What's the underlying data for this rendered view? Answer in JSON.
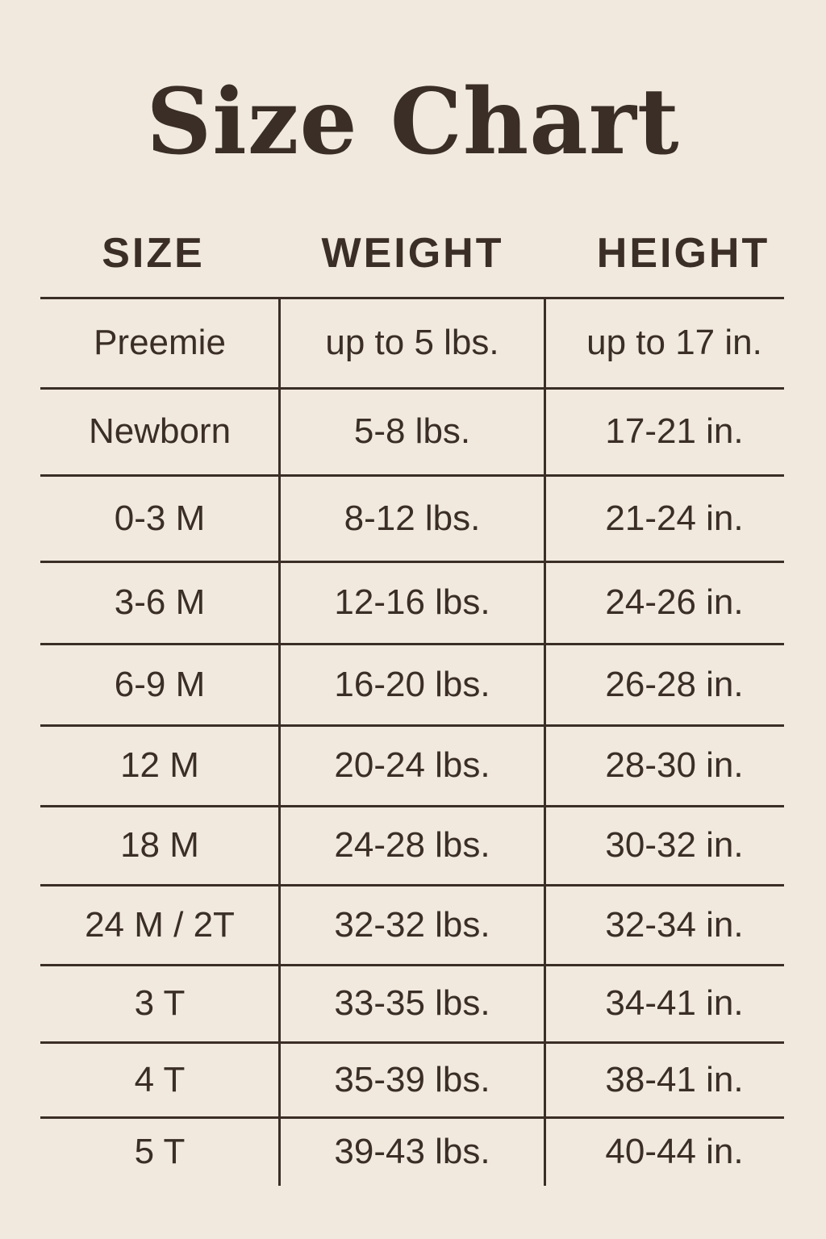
{
  "title": "Size Chart",
  "headers": [
    "SIZE",
    "WEIGHT",
    "HEIGHT"
  ],
  "rows": [
    [
      "Preemie",
      "up to 5 lbs.",
      "up to 17 in."
    ],
    [
      "Newborn",
      "5-8 lbs.",
      "17-21 in."
    ],
    [
      "0-3 M",
      "8-12 lbs.",
      "21-24 in."
    ],
    [
      "3-6 M",
      "12-16 lbs.",
      "24-26 in."
    ],
    [
      "6-9 M",
      "16-20 lbs.",
      "26-28 in."
    ],
    [
      "12 M",
      "20-24 lbs.",
      "28-30 in."
    ],
    [
      "18 M",
      "24-28 lbs.",
      "30-32 in."
    ],
    [
      "24 M / 2T",
      "32-32 lbs.",
      "32-34 in."
    ],
    [
      "3 T",
      "33-35 lbs.",
      "34-41 in."
    ],
    [
      "4 T",
      "35-39 lbs.",
      "38-41 in."
    ],
    [
      "5 T",
      "39-43 lbs.",
      "40-44 in."
    ]
  ],
  "colors": {
    "background": "#f1e9de",
    "text": "#3a2e26"
  }
}
